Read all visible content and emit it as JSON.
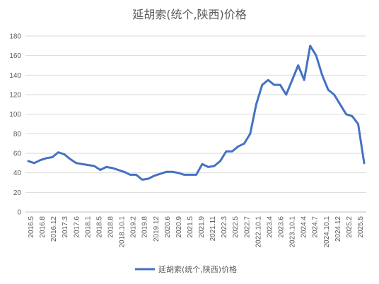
{
  "chart_data": {
    "type": "line",
    "title": "延胡索(统个,陕西)价格",
    "xlabel": "",
    "ylabel": "",
    "ylim": [
      0,
      180
    ],
    "yticks": [
      0,
      20,
      40,
      60,
      80,
      100,
      120,
      140,
      160,
      180
    ],
    "grid": true,
    "legend_position": "bottom",
    "color": "#4472C4",
    "x_tick_labels": [
      "2016.5",
      "2016.8",
      "2016.12",
      "2017.3",
      "2017.6",
      "2018.1",
      "2018.5",
      "2018.8",
      "2018.10.1",
      "2019.2",
      "2019.8",
      "2019.12",
      "2020.6",
      "2020.9",
      "2021.5",
      "2021.9",
      "2021.11",
      "2022.3",
      "2022.5",
      "2022.7",
      "2022.10.1",
      "2023.4",
      "2023.6",
      "2023.10.1",
      "2024.4",
      "2024.7",
      "2024.10.1",
      "2024.12",
      "2025.2",
      "2025.5"
    ],
    "series": [
      {
        "name": "延胡索(统个,陕西)价格",
        "values": [
          52,
          50,
          53,
          55,
          56,
          61,
          59,
          54,
          50,
          49,
          48,
          47,
          43,
          46,
          45,
          43,
          41,
          38,
          38,
          33,
          34,
          37,
          39,
          41,
          41,
          40,
          38,
          38,
          38,
          49,
          46,
          47,
          52,
          62,
          62,
          67,
          70,
          80,
          110,
          130,
          135,
          130,
          130,
          120,
          135,
          150,
          135,
          170,
          160,
          140,
          125,
          120,
          110,
          100,
          98,
          90,
          50
        ]
      }
    ]
  }
}
